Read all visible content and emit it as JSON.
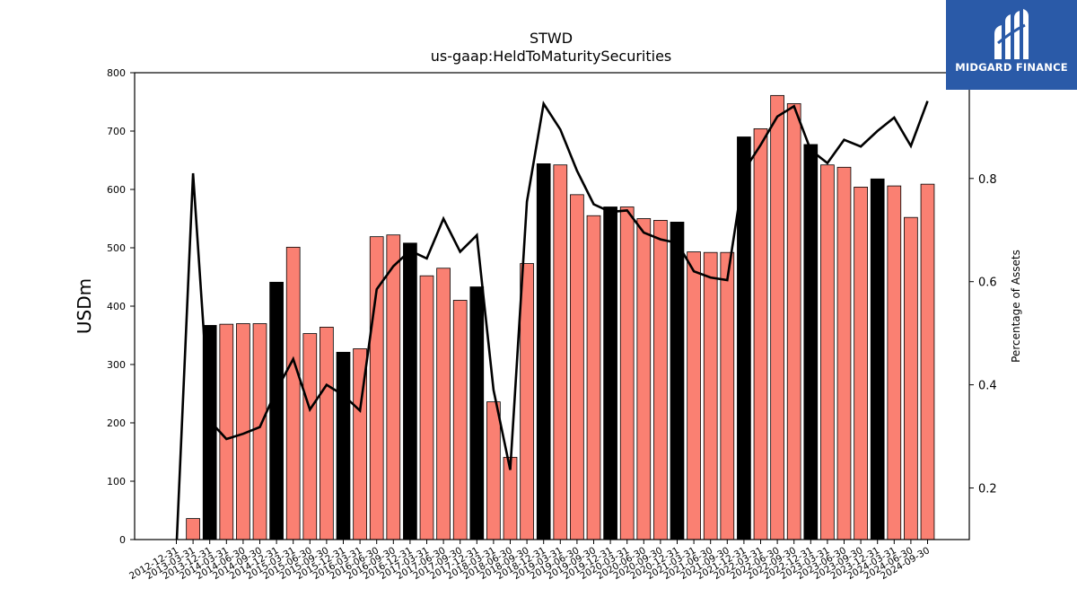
{
  "chart_data": {
    "type": "bar",
    "title": "STWD",
    "subtitle": "us-gaap:HeldToMaturitySecurities",
    "ylabel": "USDm",
    "y2label": "Percentage of Assets",
    "ylim": [
      0,
      800
    ],
    "y2lim": [
      0.1,
      1.005
    ],
    "yticks": [
      0,
      100,
      200,
      300,
      400,
      500,
      600,
      700,
      800
    ],
    "y2ticks": [
      0.2,
      0.4,
      0.6,
      0.8
    ],
    "grid": false,
    "categories": [
      "2012-12-31",
      "2013-03-31",
      "2013-12-31",
      "2014-03-31",
      "2014-06-30",
      "2014-09-30",
      "2014-12-31",
      "2015-03-31",
      "2015-06-30",
      "2015-09-30",
      "2015-12-31",
      "2016-03-31",
      "2016-06-30",
      "2016-09-30",
      "2016-12-31",
      "2017-03-31",
      "2017-06-30",
      "2017-09-30",
      "2017-12-31",
      "2018-03-31",
      "2018-06-30",
      "2018-09-30",
      "2018-12-31",
      "2019-03-31",
      "2019-06-30",
      "2019-09-30",
      "2019-12-31",
      "2020-03-31",
      "2020-06-30",
      "2020-09-30",
      "2020-12-31",
      "2021-03-31",
      "2021-06-30",
      "2021-09-30",
      "2021-12-31",
      "2022-03-31",
      "2022-06-30",
      "2022-09-30",
      "2022-12-31",
      "2023-03-31",
      "2023-06-30",
      "2023-09-30",
      "2023-12-31",
      "2024-03-31",
      "2024-06-30",
      "2024-09-30"
    ],
    "values": [
      0,
      36,
      367,
      369,
      370,
      370,
      441,
      501,
      353,
      364,
      321,
      327,
      519,
      522,
      508,
      452,
      465,
      410,
      433,
      236,
      141,
      473,
      644,
      642,
      591,
      555,
      570,
      570,
      550,
      547,
      544,
      493,
      492,
      492,
      690,
      704,
      761,
      747,
      677,
      642,
      638,
      604,
      618,
      606,
      552,
      609
    ],
    "highlight": [
      false,
      false,
      true,
      false,
      false,
      false,
      true,
      false,
      false,
      false,
      true,
      false,
      false,
      false,
      true,
      false,
      false,
      false,
      true,
      false,
      false,
      false,
      true,
      false,
      false,
      false,
      true,
      false,
      false,
      false,
      true,
      false,
      false,
      false,
      true,
      false,
      false,
      false,
      true,
      false,
      false,
      false,
      true,
      false,
      false,
      false
    ],
    "series": [
      {
        "axis": "right",
        "type": "line",
        "values": [
          0.08,
          0.81,
          0.33,
          0.295,
          0.305,
          0.318,
          0.39,
          0.45,
          0.352,
          0.4,
          0.38,
          0.35,
          0.585,
          0.63,
          0.66,
          0.645,
          0.722,
          0.658,
          0.69,
          0.39,
          0.235,
          0.755,
          0.945,
          0.895,
          0.815,
          0.75,
          0.735,
          0.738,
          0.695,
          0.682,
          0.675,
          0.62,
          0.608,
          0.603,
          0.815,
          0.865,
          0.92,
          0.94,
          0.855,
          0.83,
          0.875,
          0.862,
          0.892,
          0.918,
          0.863,
          0.95
        ]
      }
    ],
    "colors": {
      "bar": "#fa8072",
      "highlight_bar": "#000000",
      "line": "#000000"
    }
  },
  "logo": {
    "text": "MIDGARD FINANCE"
  }
}
